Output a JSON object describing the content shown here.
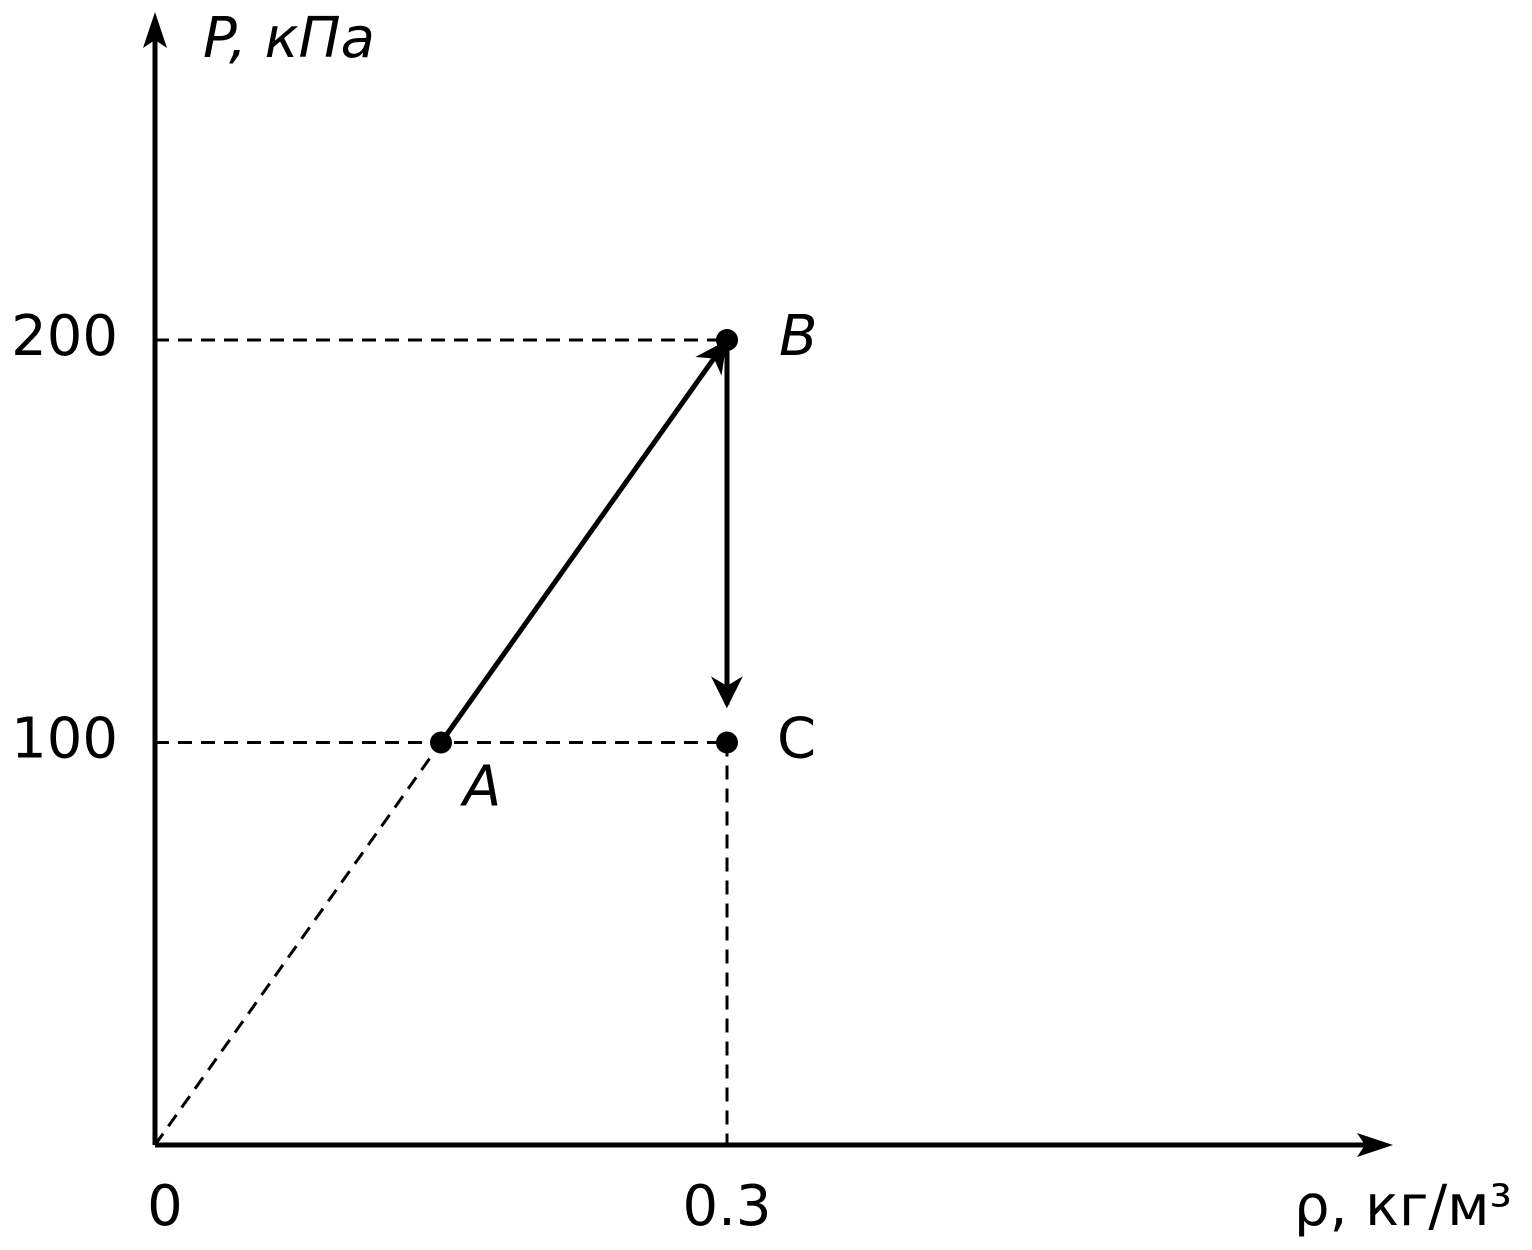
{
  "chart_data": {
    "type": "scatter",
    "y_label": "P, кПа",
    "x_label": "ρ, кг/м³",
    "x": [
      0.15,
      0.3,
      0.3
    ],
    "values": [
      100,
      200,
      100
    ],
    "point_labels": [
      "A",
      "B",
      "C"
    ],
    "color": "#000000",
    "xlim": [
      0,
      0.65
    ],
    "ylim": [
      0,
      280
    ],
    "xticks": [
      0,
      0.3
    ],
    "yticks": [
      100,
      200
    ]
  }
}
